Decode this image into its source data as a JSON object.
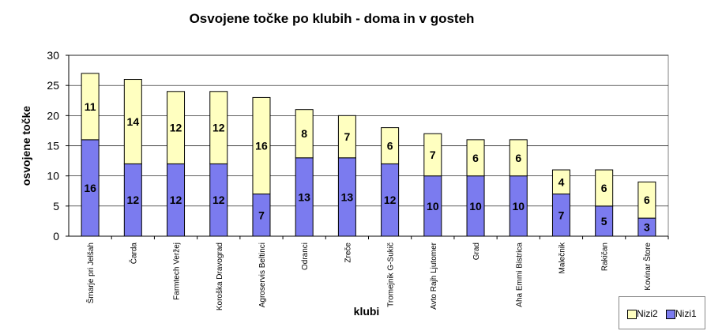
{
  "chart_data": {
    "type": "bar",
    "stacked": true,
    "title": "Osvojene točke po klubih - doma in v gosteh",
    "xlabel": "klubi",
    "ylabel": "osvojene točke",
    "ylim": [
      0,
      30
    ],
    "yticks": [
      0,
      5,
      10,
      15,
      20,
      25,
      30
    ],
    "grid": true,
    "legend": "bottom-right",
    "categories": [
      "Šmarje pri Jelšah",
      "Čarda",
      "Farmtech Veržej",
      "Koroška Dravograd",
      "Agroservis Beltinci",
      "Odranci",
      "Zreče",
      "Tromejnik G-Sukič",
      "Avto Rajh Ljutomer",
      "Grad",
      "Aha Emmi Bistrica",
      "Malečnik",
      "Rakičan",
      "Kovinar Štore"
    ],
    "series": [
      {
        "name": "Nizi1",
        "color": "#7b7bef",
        "values": [
          16,
          12,
          12,
          12,
          7,
          13,
          13,
          12,
          10,
          10,
          10,
          7,
          5,
          3
        ]
      },
      {
        "name": "Nizi2",
        "color": "#ffffc0",
        "values": [
          11,
          14,
          12,
          12,
          16,
          8,
          7,
          6,
          7,
          6,
          6,
          4,
          6,
          6
        ]
      }
    ]
  }
}
